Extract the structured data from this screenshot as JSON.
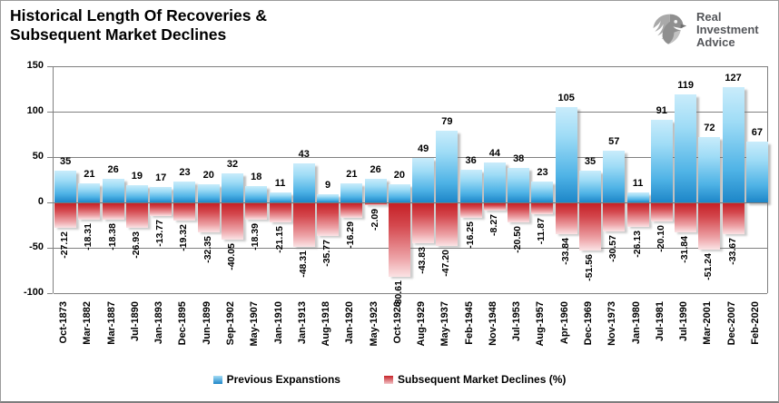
{
  "header": {
    "title_line1": "Historical Length Of Recoveries &",
    "title_line2": "Subsequent Market Declines"
  },
  "logo": {
    "line1": "Real",
    "line2": "Investment",
    "line3": "Advice"
  },
  "legend": {
    "expansions_label": "Previous Expanstions",
    "declines_label": "Subsequent Market Declines (%)"
  },
  "colors": {
    "bar_blue_top": "#c9ecfb",
    "bar_blue_bottom": "#1d86c8",
    "bar_red_top": "#c52026",
    "bar_red_bottom": "#fbe3e5",
    "gridline": "#808080",
    "text": "#000000",
    "logo_gray": "#54565a"
  },
  "chart_data": {
    "type": "bar",
    "title": "Historical Length Of Recoveries & Subsequent Market Declines",
    "categories": [
      "Oct-1873",
      "Mar-1882",
      "Mar-1887",
      "Jul-1890",
      "Jan-1893",
      "Dec-1895",
      "Jun-1899",
      "Sep-1902",
      "May-1907",
      "Jan-1910",
      "Jan-1913",
      "Aug-1918",
      "Jan-1920",
      "May-1923",
      "Oct-1926",
      "Aug-1929",
      "May-1937",
      "Feb-1945",
      "Nov-1948",
      "Jul-1953",
      "Aug-1957",
      "Apr-1960",
      "Dec-1969",
      "Nov-1973",
      "Jan-1980",
      "Jul-1981",
      "Jul-1990",
      "Mar-2001",
      "Dec-2007",
      "Feb-2020"
    ],
    "series": [
      {
        "name": "Previous Expanstions",
        "values": [
          35,
          21,
          26,
          19,
          17,
          23,
          20,
          32,
          18,
          11,
          43,
          9,
          21,
          26,
          20,
          49,
          79,
          36,
          44,
          38,
          23,
          105,
          35,
          57,
          11,
          91,
          119,
          72,
          127,
          67
        ]
      },
      {
        "name": "Subsequent Market Declines (%)",
        "values": [
          -27.12,
          -18.31,
          -18.38,
          -26.93,
          -13.77,
          -19.32,
          -32.35,
          -40.05,
          -18.39,
          -21.15,
          -48.31,
          -35.77,
          -16.29,
          -2.09,
          -80.61,
          -43.83,
          -47.2,
          -16.25,
          -8.27,
          -20.5,
          -11.87,
          -33.84,
          -51.56,
          -30.57,
          -26.13,
          -20.1,
          -31.84,
          -51.24,
          -33.67,
          null
        ],
        "labels": [
          "-27.12",
          "-18.31",
          "-18.38",
          "-26.93",
          "-13.77",
          "-19.32",
          "-32.35",
          "-40.05",
          "-18.39",
          "-21.15",
          "-48.31",
          "-35.77",
          "-16.29",
          "-2.09",
          "-80.61",
          "-43.83",
          "-47.20",
          "-16.25",
          "-8.27",
          "-20.50",
          "-11.87",
          "-33.84",
          "-51.56",
          "-30.57",
          "-26.13",
          "-20.10",
          "-31.84",
          "-51.24",
          "-33.67",
          null
        ]
      }
    ],
    "xlabel": "",
    "ylabel": "",
    "ylim": [
      -100,
      150
    ],
    "yticks": [
      150,
      100,
      50,
      0,
      -50,
      -100
    ],
    "grid": "horizontal",
    "legend_position": "bottom"
  }
}
